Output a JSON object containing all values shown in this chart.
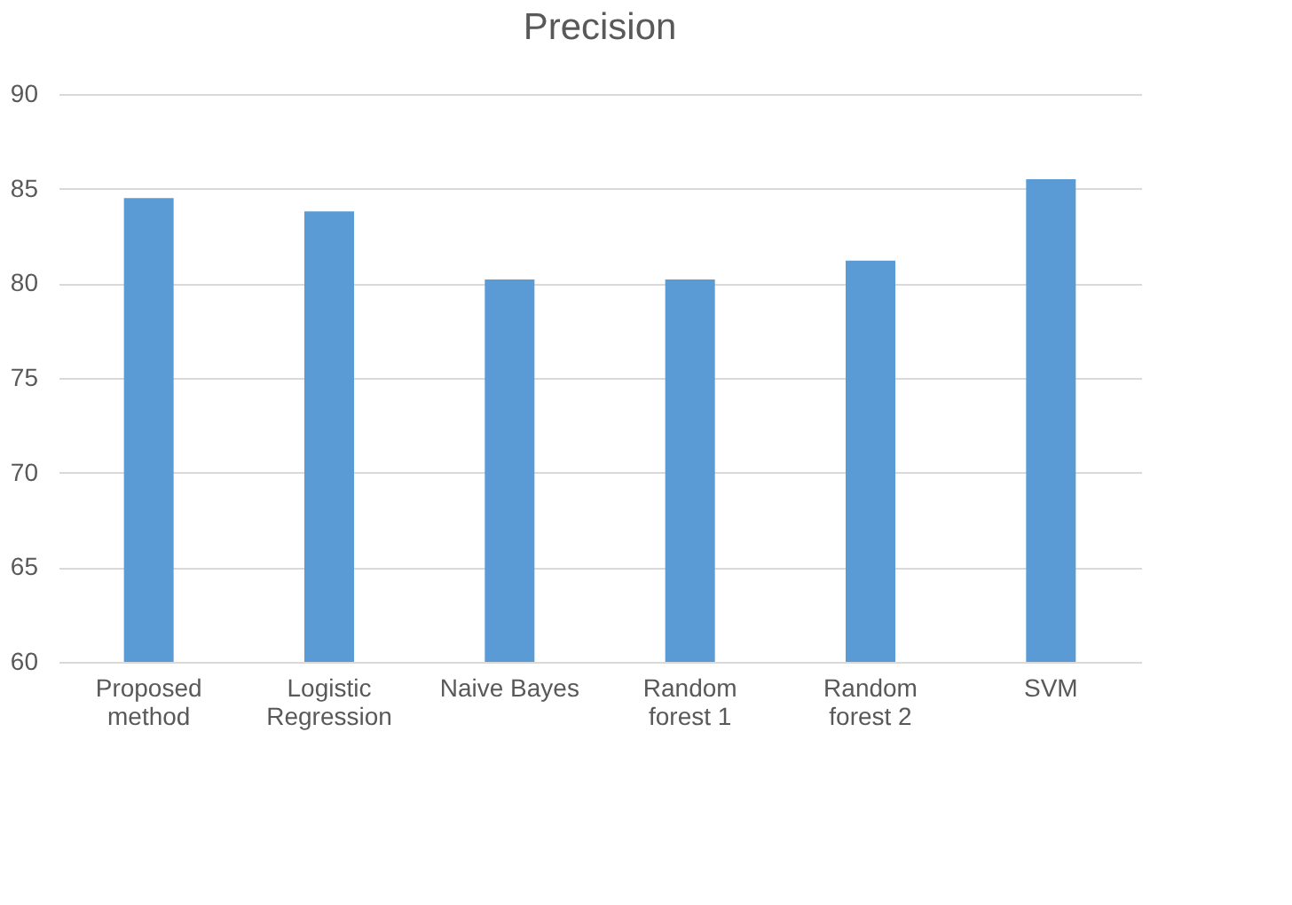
{
  "chart_data": {
    "type": "bar",
    "title": "Precision",
    "categories": [
      "Proposed method",
      "Logistic Regression",
      "Naive Bayes",
      "Random forest 1",
      "Random forest 2",
      "SVM"
    ],
    "values": [
      84.5,
      83.8,
      80.2,
      80.2,
      81.2,
      85.5
    ],
    "color": "#5b9bd5",
    "ylim": [
      60,
      90
    ],
    "yticks": [
      60,
      65,
      70,
      75,
      80,
      85,
      90
    ],
    "grid": "y"
  }
}
